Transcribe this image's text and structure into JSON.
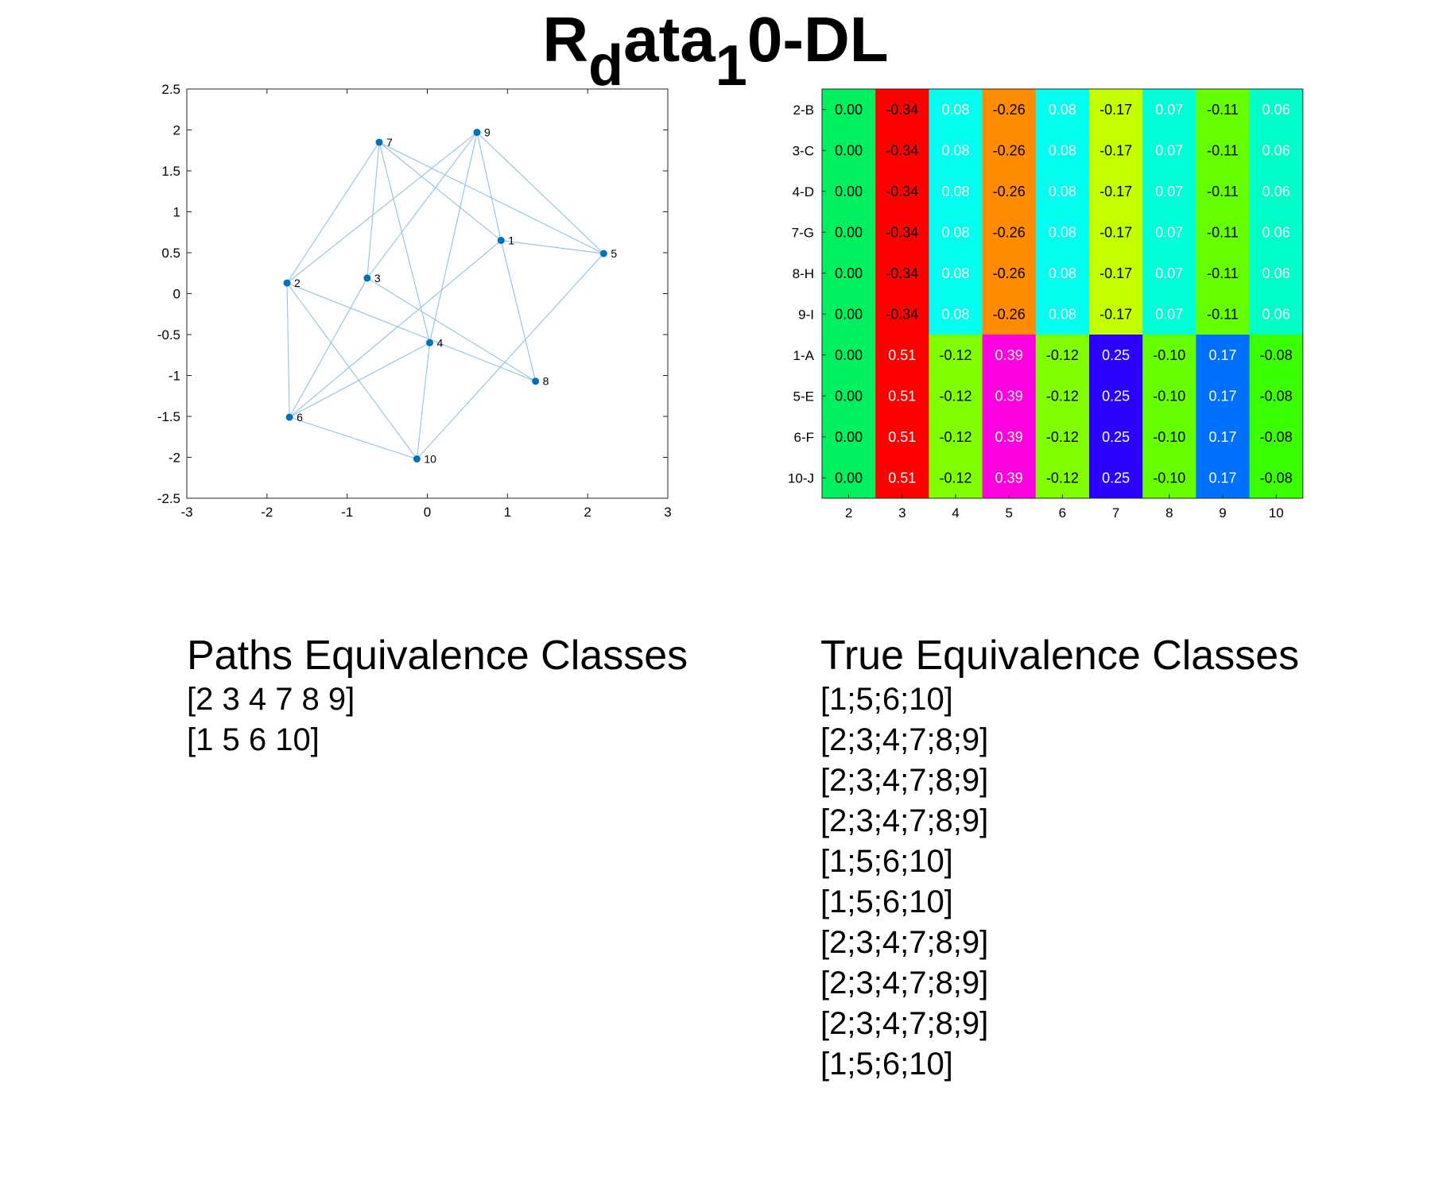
{
  "title": {
    "main": "R",
    "sub1": "d",
    "mid": "ata",
    "sub2": "1",
    "end": "0-DL"
  },
  "chart_data": [
    {
      "type": "scatter",
      "subtype": "network-graph",
      "xlim": [
        -3,
        3
      ],
      "ylim": [
        -2.5,
        2.5
      ],
      "xticks": [
        "-3",
        "-2",
        "-1",
        "0",
        "1",
        "2",
        "3"
      ],
      "yticks": [
        "2.5",
        "2",
        "1.5",
        "1",
        "0.5",
        "0",
        "-0.5",
        "-1",
        "-1.5",
        "-2",
        "-2.5"
      ],
      "grid": false,
      "node_color": "#0072BD",
      "edge_color": "#8EC3E8",
      "nodes": [
        {
          "id": "1",
          "x": 0.92,
          "y": 0.65
        },
        {
          "id": "2",
          "x": -1.75,
          "y": 0.13
        },
        {
          "id": "3",
          "x": -0.75,
          "y": 0.19
        },
        {
          "id": "4",
          "x": 0.03,
          "y": -0.6
        },
        {
          "id": "5",
          "x": 2.2,
          "y": 0.49
        },
        {
          "id": "6",
          "x": -1.72,
          "y": -1.51
        },
        {
          "id": "7",
          "x": -0.6,
          "y": 1.85
        },
        {
          "id": "8",
          "x": 1.35,
          "y": -1.07
        },
        {
          "id": "9",
          "x": 0.62,
          "y": 1.97
        },
        {
          "id": "10",
          "x": -0.13,
          "y": -2.02
        }
      ],
      "edges": [
        [
          "7",
          "1"
        ],
        [
          "7",
          "5"
        ],
        [
          "7",
          "3"
        ],
        [
          "7",
          "4"
        ],
        [
          "7",
          "2"
        ],
        [
          "9",
          "2"
        ],
        [
          "9",
          "3"
        ],
        [
          "9",
          "1"
        ],
        [
          "9",
          "5"
        ],
        [
          "9",
          "4"
        ],
        [
          "2",
          "6"
        ],
        [
          "2",
          "8"
        ],
        [
          "2",
          "10"
        ],
        [
          "3",
          "8"
        ],
        [
          "3",
          "6"
        ],
        [
          "1",
          "5"
        ],
        [
          "1",
          "8"
        ],
        [
          "1",
          "6"
        ],
        [
          "5",
          "10"
        ],
        [
          "4",
          "10"
        ],
        [
          "4",
          "6"
        ],
        [
          "6",
          "10"
        ]
      ]
    },
    {
      "type": "heatmap",
      "columns": [
        "2",
        "3",
        "4",
        "5",
        "6",
        "7",
        "8",
        "9",
        "10"
      ],
      "rows": [
        "2-B",
        "3-C",
        "4-D",
        "7-G",
        "8-H",
        "9-I",
        "1-A",
        "5-E",
        "6-F",
        "10-J"
      ],
      "values": [
        [
          0.0,
          -0.34,
          0.08,
          -0.26,
          0.08,
          -0.17,
          0.07,
          -0.11,
          0.06
        ],
        [
          0.0,
          -0.34,
          0.08,
          -0.26,
          0.08,
          -0.17,
          0.07,
          -0.11,
          0.06
        ],
        [
          0.0,
          -0.34,
          0.08,
          -0.26,
          0.08,
          -0.17,
          0.07,
          -0.11,
          0.06
        ],
        [
          0.0,
          -0.34,
          0.08,
          -0.26,
          0.08,
          -0.17,
          0.07,
          -0.11,
          0.06
        ],
        [
          0.0,
          -0.34,
          0.08,
          -0.26,
          0.08,
          -0.17,
          0.07,
          -0.11,
          0.06
        ],
        [
          0.0,
          -0.34,
          0.08,
          -0.26,
          0.08,
          -0.17,
          0.07,
          -0.11,
          0.06
        ],
        [
          0.0,
          0.51,
          -0.12,
          0.39,
          -0.12,
          0.25,
          -0.1,
          0.17,
          -0.08
        ],
        [
          0.0,
          0.51,
          -0.12,
          0.39,
          -0.12,
          0.25,
          -0.1,
          0.17,
          -0.08
        ],
        [
          0.0,
          0.51,
          -0.12,
          0.39,
          -0.12,
          0.25,
          -0.1,
          0.17,
          -0.08
        ],
        [
          0.0,
          0.51,
          -0.12,
          0.39,
          -0.12,
          0.25,
          -0.1,
          0.17,
          -0.08
        ]
      ],
      "value_colors": {
        "0.00": "#00F060",
        "-0.34": "#FF0000",
        "0.51": "#FF0000",
        "0.08": "#00FFEE",
        "-0.12": "#80FF00",
        "-0.26": "#FF8C00",
        "0.39": "#FF00E0",
        "-0.17": "#C4FF00",
        "0.25": "#2B00FF",
        "0.07": "#00FFD8",
        "-0.10": "#66FF00",
        "-0.11": "#66FF00",
        "0.17": "#0070FF",
        "0.06": "#00FFC8",
        "-0.08": "#3AFF00"
      },
      "white_text_values": [
        "0.08",
        "0.07",
        "0.06",
        "0.51",
        "0.39",
        "0.25",
        "0.17"
      ]
    }
  ],
  "paths_classes": {
    "heading": "Paths Equivalence Classes",
    "items": [
      "[2 3 4 7 8 9]",
      "[1 5 6 10]"
    ]
  },
  "true_classes": {
    "heading": "True Equivalence Classes",
    "items": [
      "[1;5;6;10]",
      "[2;3;4;7;8;9]",
      "[2;3;4;7;8;9]",
      "[2;3;4;7;8;9]",
      "[1;5;6;10]",
      "[1;5;6;10]",
      "[2;3;4;7;8;9]",
      "[2;3;4;7;8;9]",
      "[2;3;4;7;8;9]",
      "[1;5;6;10]"
    ]
  }
}
